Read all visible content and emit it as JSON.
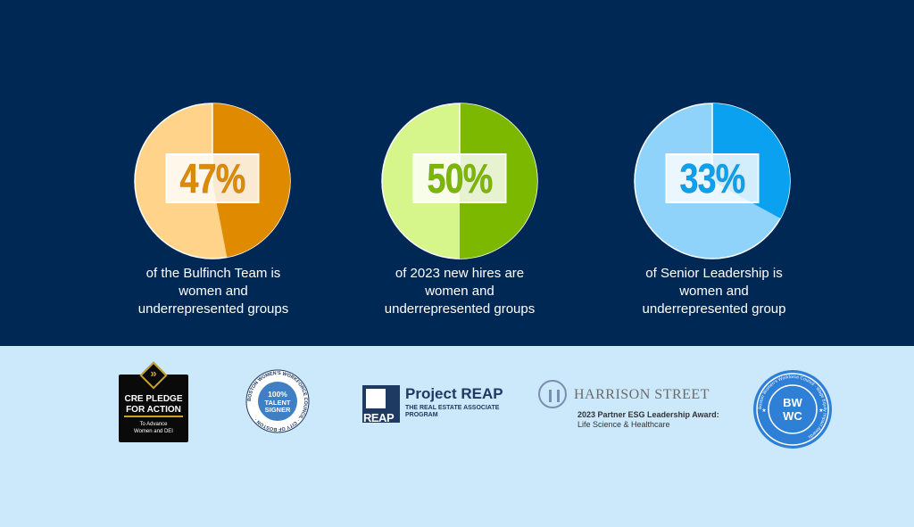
{
  "chart_data": [
    {
      "type": "pie",
      "value_percent": 47,
      "label": "47%",
      "caption": [
        "of the Bulfinch Team is",
        "women and",
        "underrepresented groups"
      ],
      "colors": {
        "highlight": "#e08a00",
        "rest": "#ffd38a",
        "text": "#e08a00"
      }
    },
    {
      "type": "pie",
      "value_percent": 50,
      "label": "50%",
      "caption": [
        "of 2023 new hires are",
        "women and",
        "underrepresented groups"
      ],
      "colors": {
        "highlight": "#7cb800",
        "rest": "#d6f58a",
        "text": "#7cb800"
      }
    },
    {
      "type": "pie",
      "value_percent": 33,
      "label": "33%",
      "caption": [
        "of Senior Leadership is",
        "women and",
        "underrepresented group"
      ],
      "colors": {
        "highlight": "#0aa2f0",
        "rest": "#8fd3fa",
        "text": "#0aa2f0"
      }
    }
  ],
  "logos": {
    "cre_pledge": {
      "line1": "CRE PLEDGE",
      "line2": "FOR ACTION",
      "line3": "To Advance",
      "line4": "Women and DEI"
    },
    "bwwc_seal": {
      "ring": "BOSTON WOMEN'S WORKFORCE COUNCIL · CITY OF BOSTON ·",
      "center1": "100%",
      "center2": "TALENT",
      "center3": "SIGNER"
    },
    "project_reap": {
      "mark": "REAP",
      "name": "Project REAP",
      "sub1": "THE REAL ESTATE ASSOCIATE",
      "sub2": "PROGRAM"
    },
    "harrison_street": {
      "title": "HARRISON STREET",
      "award": "2023 Partner ESG Leadership Award:",
      "category": "Life Science & Healthcare"
    },
    "bwwc_award": {
      "center1": "BW",
      "center2": "WC",
      "ring": "Boston Women's Workforce Council · Wage Equity Impact Awards"
    }
  }
}
